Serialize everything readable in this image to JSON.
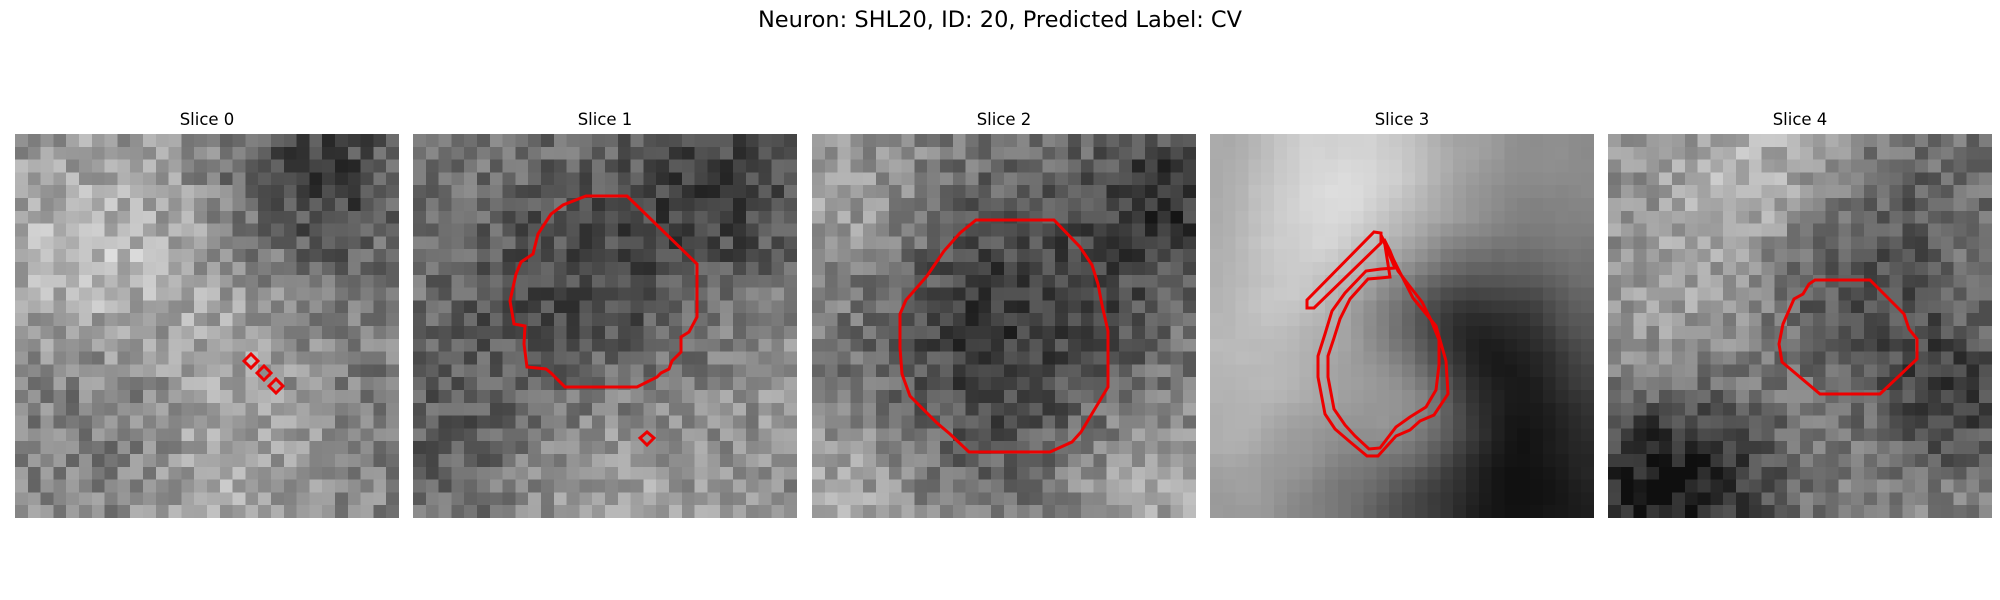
{
  "figure": {
    "title": "Neuron: SHL20, ID: 20, Predicted Label: CV"
  },
  "slices": [
    {
      "label": "Slice 0"
    },
    {
      "label": "Slice 1"
    },
    {
      "label": "Slice 2"
    },
    {
      "label": "Slice 3"
    },
    {
      "label": "Slice 4"
    }
  ],
  "colors": {
    "contour": "#ee0000",
    "background": "#ffffff"
  }
}
